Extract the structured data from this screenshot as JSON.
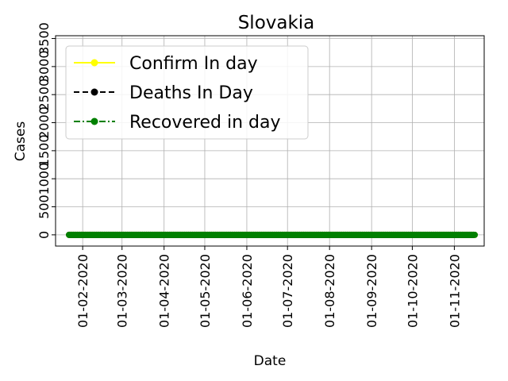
{
  "chart_data": {
    "type": "line",
    "title": "Slovakia",
    "xlabel": "Date",
    "ylabel": "Cases",
    "x_start": "2020-01-22",
    "x_end": "2020-11-13",
    "xlim": [
      "2020-01-12",
      "2020-11-23"
    ],
    "ylim": [
      -200,
      3550
    ],
    "xticks": [
      {
        "date": "2020-02-01",
        "label": "01-02-2020"
      },
      {
        "date": "2020-03-01",
        "label": "01-03-2020"
      },
      {
        "date": "2020-04-01",
        "label": "01-04-2020"
      },
      {
        "date": "2020-05-01",
        "label": "01-05-2020"
      },
      {
        "date": "2020-06-01",
        "label": "01-06-2020"
      },
      {
        "date": "2020-07-01",
        "label": "01-07-2020"
      },
      {
        "date": "2020-08-01",
        "label": "01-08-2020"
      },
      {
        "date": "2020-09-01",
        "label": "01-09-2020"
      },
      {
        "date": "2020-10-01",
        "label": "01-10-2020"
      },
      {
        "date": "2020-11-01",
        "label": "01-11-2020"
      }
    ],
    "yticks": [
      0,
      500,
      1000,
      1500,
      2000,
      2500,
      3000,
      3500
    ],
    "grid": true,
    "legend_position": "top-left",
    "series": [
      {
        "name": "Confirm In day",
        "color": "#ffff00",
        "linestyle": "solid",
        "values": [
          0,
          0,
          0,
          0,
          0,
          0,
          0,
          0,
          0,
          0,
          0,
          0,
          0,
          0,
          0,
          0,
          0,
          0,
          0,
          0,
          0,
          0,
          0,
          0,
          0,
          0,
          0,
          0,
          0,
          0,
          0,
          0,
          0,
          0,
          0,
          0,
          0,
          0,
          0,
          0,
          0,
          0,
          0,
          0,
          0,
          0,
          0,
          0,
          0,
          0,
          0,
          0,
          0,
          0,
          0,
          0,
          0,
          0,
          0,
          0,
          0,
          0,
          0,
          0,
          0,
          0,
          0,
          0,
          0,
          0,
          0,
          0,
          0,
          0,
          0,
          0,
          0,
          0,
          0,
          0,
          0,
          0,
          0,
          0,
          0,
          0,
          0,
          0,
          0,
          0,
          0,
          0,
          0,
          0,
          0,
          0,
          0,
          0,
          0,
          0,
          0,
          0,
          0,
          0,
          0,
          0,
          0,
          0,
          0,
          0,
          0,
          0,
          0,
          0,
          0,
          0,
          0,
          0,
          0,
          0,
          0,
          0,
          0,
          0,
          0,
          0,
          0,
          0,
          0,
          0,
          0,
          0,
          0,
          0,
          0,
          0,
          0,
          0,
          0,
          0,
          0,
          0,
          0,
          0,
          0,
          0,
          0,
          0,
          0,
          0,
          0,
          0,
          0,
          0,
          0,
          0,
          0,
          0,
          0,
          0,
          0,
          0,
          0,
          0,
          0,
          0,
          0,
          0,
          0,
          0,
          0,
          0,
          0,
          0,
          0,
          0,
          0,
          0,
          0,
          0,
          0,
          0,
          0,
          0,
          0,
          0,
          0,
          0,
          0,
          0,
          0,
          0,
          0,
          0,
          0,
          0,
          0,
          0,
          0,
          0,
          0,
          0,
          0,
          0,
          0,
          0,
          0,
          0,
          0,
          0,
          0,
          0,
          0,
          0,
          0,
          0,
          0,
          0,
          0,
          0,
          0,
          0,
          0,
          0,
          0,
          0,
          0,
          0,
          0,
          0,
          0,
          0,
          0,
          0,
          0,
          0,
          0,
          0,
          0,
          0,
          0,
          0,
          0,
          0,
          0,
          0,
          0,
          0,
          0,
          0,
          0,
          0,
          0,
          0,
          0,
          0,
          0,
          0,
          0,
          0,
          0,
          0,
          0,
          0,
          0,
          0,
          0,
          0,
          0,
          0,
          0,
          0,
          0,
          0,
          0,
          0,
          0,
          0,
          0,
          0,
          0,
          0,
          0,
          0,
          0,
          0,
          0,
          0,
          0,
          0,
          0,
          0,
          0,
          0,
          0,
          0,
          0,
          0,
          0,
          0
        ]
      },
      {
        "name": "Deaths In Day",
        "color": "#000000",
        "linestyle": "dashed",
        "values": [
          0,
          0,
          0,
          0,
          0,
          0,
          0,
          0,
          0,
          0,
          0,
          0,
          0,
          0,
          0,
          0,
          0,
          0,
          0,
          0,
          0,
          0,
          0,
          0,
          0,
          0,
          0,
          0,
          0,
          0,
          0,
          0,
          0,
          0,
          0,
          0,
          0,
          0,
          0,
          0,
          0,
          0,
          0,
          0,
          0,
          0,
          0,
          0,
          0,
          0,
          0,
          0,
          0,
          0,
          0,
          0,
          0,
          0,
          0,
          0,
          0,
          0,
          0,
          0,
          0,
          0,
          0,
          0,
          0,
          0,
          0,
          0,
          0,
          0,
          0,
          0,
          0,
          0,
          0,
          0,
          0,
          0,
          0,
          0,
          0,
          0,
          0,
          0,
          0,
          0,
          0,
          0,
          0,
          0,
          0,
          0,
          0,
          0,
          0,
          0,
          0,
          0,
          0,
          0,
          0,
          0,
          0,
          0,
          0,
          0,
          0,
          0,
          0,
          0,
          0,
          0,
          0,
          0,
          0,
          0,
          0,
          0,
          0,
          0,
          0,
          0,
          0,
          0,
          0,
          0,
          0,
          0,
          0,
          0,
          0,
          0,
          0,
          0,
          0,
          0,
          0,
          0,
          0,
          0,
          0,
          0,
          0,
          0,
          0,
          0,
          0,
          0,
          0,
          0,
          0,
          0,
          0,
          0,
          0,
          0,
          0,
          0,
          0,
          0,
          0,
          0,
          0,
          0,
          0,
          0,
          0,
          0,
          0,
          0,
          0,
          0,
          0,
          0,
          0,
          0,
          0,
          0,
          0,
          0,
          0,
          0,
          0,
          0,
          0,
          0,
          0,
          0,
          0,
          0,
          0,
          0,
          0,
          0,
          0,
          0,
          0,
          0,
          0,
          0,
          0,
          0,
          0,
          0,
          0,
          0,
          0,
          0,
          0,
          0,
          0,
          0,
          0,
          0,
          0,
          0,
          0,
          0,
          0,
          0,
          0,
          0,
          0,
          0,
          0,
          0,
          0,
          0,
          0,
          0,
          0,
          0,
          0,
          0,
          0,
          0,
          0,
          0,
          0,
          0,
          0,
          0,
          0,
          0,
          0,
          0,
          0,
          0,
          0,
          0,
          0,
          0,
          0,
          0,
          0,
          0,
          0,
          0,
          0,
          0,
          0,
          0,
          0,
          0,
          0,
          0,
          0,
          0,
          0,
          0,
          0,
          0,
          0,
          0,
          0,
          0,
          0,
          0,
          0,
          0,
          0,
          0,
          0,
          0,
          0,
          0,
          0,
          0,
          0,
          0,
          0,
          0,
          0,
          0,
          0
        ]
      },
      {
        "name": "Recovered in day",
        "color": "#008000",
        "linestyle": "dashdot",
        "values": [
          0,
          0,
          0,
          0,
          0,
          0,
          0,
          0,
          0,
          0,
          0,
          0,
          0,
          0,
          0,
          0,
          0,
          0,
          0,
          0,
          0,
          0,
          0,
          0,
          0,
          0,
          0,
          0,
          0,
          0,
          0,
          0,
          0,
          0,
          0,
          0,
          0,
          0,
          0,
          0,
          0,
          0,
          0,
          0,
          0,
          0,
          0,
          0,
          0,
          0,
          0,
          0,
          0,
          0,
          0,
          0,
          0,
          0,
          0,
          0,
          0,
          0,
          0,
          0,
          0,
          0,
          0,
          0,
          0,
          0,
          0,
          0,
          0,
          0,
          0,
          0,
          0,
          0,
          0,
          0,
          0,
          0,
          0,
          0,
          0,
          0,
          0,
          0,
          0,
          0,
          0,
          0,
          0,
          0,
          0,
          0,
          0,
          0,
          0,
          0,
          0,
          0,
          0,
          0,
          0,
          0,
          0,
          0,
          0,
          0,
          0,
          0,
          0,
          0,
          0,
          0,
          0,
          0,
          0,
          0,
          0,
          0,
          0,
          0,
          0,
          0,
          0,
          0,
          0,
          0,
          0,
          0,
          0,
          0,
          0,
          0,
          0,
          0,
          0,
          0,
          0,
          0,
          0,
          0,
          0,
          0,
          0,
          0,
          0,
          0,
          0,
          0,
          0,
          0,
          0,
          0,
          0,
          0,
          0,
          0,
          0,
          0,
          0,
          0,
          0,
          0,
          0,
          0,
          0,
          0,
          0,
          0,
          0,
          0,
          0,
          0,
          0,
          0,
          0,
          0,
          0,
          0,
          0,
          0,
          0,
          0,
          0,
          0,
          0,
          0,
          0,
          0,
          0,
          0,
          0,
          0,
          0,
          0,
          0,
          0,
          0,
          0,
          0,
          0,
          0,
          0,
          0,
          0,
          0,
          0,
          0,
          0,
          0,
          0,
          0,
          0,
          0,
          0,
          0,
          0,
          0,
          0,
          0,
          0,
          0,
          0,
          0,
          0,
          0,
          0,
          0,
          0,
          0,
          0,
          0,
          0,
          0,
          0,
          0,
          0,
          0,
          0,
          0,
          0,
          0,
          0,
          0,
          0,
          0,
          0,
          0,
          0,
          0,
          0,
          0,
          0,
          0,
          0,
          0,
          0,
          0,
          0,
          0,
          0,
          0,
          0,
          0,
          0,
          0,
          0,
          0,
          0,
          0,
          0,
          0,
          0,
          0,
          0,
          0,
          0,
          0,
          0,
          0,
          0,
          0,
          0,
          0,
          0,
          0,
          0,
          0,
          0,
          0,
          0,
          0,
          0,
          0,
          0,
          0,
          0
        ]
      }
    ]
  }
}
